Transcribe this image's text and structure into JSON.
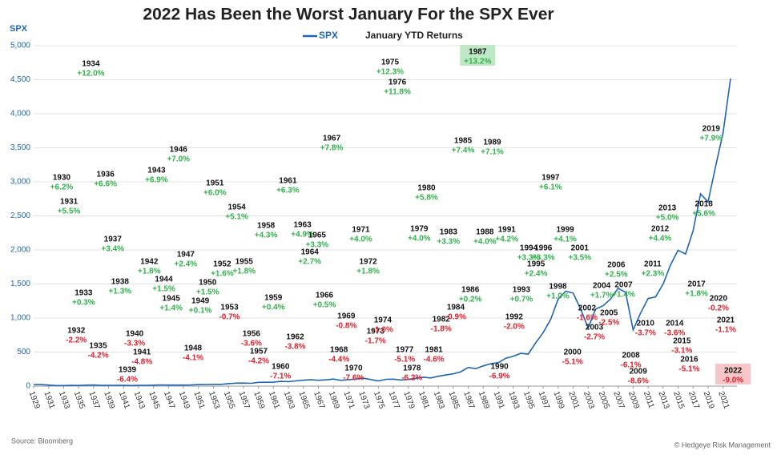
{
  "chart_data": {
    "type": "line",
    "title": "2022 Has Been the Worst January For the SPX Ever",
    "y_axis_label": "SPX",
    "annotations_title": "January YTD Returns",
    "source": "Source: Bloomberg",
    "credit": "© Hedgeye Risk Management",
    "ylim": [
      0,
      5000
    ],
    "yticks": [
      0,
      500,
      {
        "value": 1000,
        "label": "1,000"
      },
      {
        "value": 1500,
        "label": "1,500"
      },
      {
        "value": 2000,
        "label": "2,000"
      },
      {
        "value": 2500,
        "label": "2,500"
      },
      {
        "value": 3000,
        "label": "3,000"
      },
      {
        "value": 3500,
        "label": "3,500"
      },
      {
        "value": 4000,
        "label": "4,000"
      },
      {
        "value": 4500,
        "label": "4,500"
      },
      {
        "value": 5000,
        "label": "5,000"
      }
    ],
    "xlim": [
      1929,
      2022
    ],
    "xticks": [
      1929,
      1931,
      1933,
      1935,
      1937,
      1939,
      1941,
      1943,
      1945,
      1947,
      1949,
      1951,
      1953,
      1955,
      1957,
      1959,
      1961,
      1963,
      1965,
      1967,
      1969,
      1971,
      1973,
      1975,
      1977,
      1979,
      1981,
      1983,
      1985,
      1987,
      1989,
      1991,
      1993,
      1995,
      1997,
      1999,
      2001,
      2003,
      2005,
      2007,
      2009,
      2011,
      2013,
      2015,
      2017,
      2019,
      2021
    ],
    "grid": true,
    "series": [
      {
        "name": "SPX",
        "color": "#1f66b5",
        "x": [
          1929,
          1930,
          1931,
          1932,
          1933,
          1934,
          1935,
          1936,
          1937,
          1938,
          1939,
          1940,
          1941,
          1942,
          1943,
          1944,
          1945,
          1946,
          1947,
          1948,
          1949,
          1950,
          1951,
          1952,
          1953,
          1954,
          1955,
          1956,
          1957,
          1958,
          1959,
          1960,
          1961,
          1962,
          1963,
          1964,
          1965,
          1966,
          1967,
          1968,
          1969,
          1970,
          1971,
          1972,
          1973,
          1974,
          1975,
          1976,
          1977,
          1978,
          1979,
          1980,
          1981,
          1982,
          1983,
          1984,
          1985,
          1986,
          1987,
          1988,
          1989,
          1990,
          1991,
          1992,
          1993,
          1994,
          1995,
          1996,
          1997,
          1998,
          1999,
          2000,
          2001,
          2002,
          2003,
          2004,
          2005,
          2006,
          2007,
          2008,
          2009,
          2010,
          2011,
          2012,
          2013,
          2014,
          2015,
          2016,
          2017,
          2018,
          2019,
          2020,
          2021,
          2022
        ],
        "values": [
          24,
          22,
          15,
          8,
          8,
          11,
          9,
          14,
          17,
          11,
          12,
          12,
          10,
          8,
          11,
          12,
          14,
          18,
          15,
          15,
          15,
          17,
          22,
          24,
          26,
          26,
          36,
          44,
          45,
          41,
          55,
          56,
          58,
          69,
          66,
          77,
          87,
          93,
          86,
          92,
          103,
          85,
          95,
          104,
          116,
          97,
          77,
          100,
          102,
          89,
          99,
          114,
          130,
          120,
          145,
          163,
          180,
          211,
          274,
          257,
          297,
          329,
          343,
          409,
          438,
          481,
          470,
          636,
          786,
          980,
          1279,
          1394,
          1366,
          1130,
          855,
          1131,
          1181,
          1280,
          1438,
          1378,
          825,
          1073,
          1286,
          1312,
          1498,
          1782,
          1995,
          1940,
          2279,
          2823,
          2704,
          3225,
          3714,
          4515
        ]
      }
    ],
    "annotations": [
      {
        "year": "1930",
        "label": "+6.2%"
      },
      {
        "year": "1931",
        "label": "+5.5%"
      },
      {
        "year": "1932",
        "label": "-2.2%"
      },
      {
        "year": "1933",
        "label": "+0.3%"
      },
      {
        "year": "1934",
        "label": "+12.0%"
      },
      {
        "year": "1935",
        "label": "-4.2%"
      },
      {
        "year": "1936",
        "label": "+6.6%"
      },
      {
        "year": "1937",
        "label": "+3.4%"
      },
      {
        "year": "1938",
        "label": "+1.3%"
      },
      {
        "year": "1939",
        "label": "-6.4%"
      },
      {
        "year": "1940",
        "label": "-3.3%"
      },
      {
        "year": "1941",
        "label": "-4.8%"
      },
      {
        "year": "1942",
        "label": "+1.8%"
      },
      {
        "year": "1943",
        "label": "+6.9%"
      },
      {
        "year": "1944",
        "label": "+1.5%"
      },
      {
        "year": "1945",
        "label": "+1.4%"
      },
      {
        "year": "1946",
        "label": "+7.0%"
      },
      {
        "year": "1947",
        "label": "+2.4%"
      },
      {
        "year": "1948",
        "label": "-4.1%"
      },
      {
        "year": "1949",
        "label": "+0.1%"
      },
      {
        "year": "1950",
        "label": "+1.5%"
      },
      {
        "year": "1951",
        "label": "+6.0%"
      },
      {
        "year": "1952",
        "label": "+1.6%"
      },
      {
        "year": "1953",
        "label": "-0.7%"
      },
      {
        "year": "1954",
        "label": "+5.1%"
      },
      {
        "year": "1955",
        "label": "+1.8%"
      },
      {
        "year": "1956",
        "label": "-3.6%"
      },
      {
        "year": "1957",
        "label": "-4.2%"
      },
      {
        "year": "1958",
        "label": "+4.3%"
      },
      {
        "year": "1959",
        "label": "+0.4%"
      },
      {
        "year": "1960",
        "label": "-7.1%"
      },
      {
        "year": "1961",
        "label": "+6.3%"
      },
      {
        "year": "1962",
        "label": "-3.8%"
      },
      {
        "year": "1963",
        "label": "+4.9%"
      },
      {
        "year": "1964",
        "label": "+2.7%"
      },
      {
        "year": "1965",
        "label": "+3.3%"
      },
      {
        "year": "1966",
        "label": "+0.5%"
      },
      {
        "year": "1967",
        "label": "+7.8%"
      },
      {
        "year": "1968",
        "label": "-4.4%"
      },
      {
        "year": "1969",
        "label": "-0.8%"
      },
      {
        "year": "1970",
        "label": "-7.6%"
      },
      {
        "year": "1971",
        "label": "+4.0%"
      },
      {
        "year": "1972",
        "label": "+1.8%"
      },
      {
        "year": "1973",
        "label": "-1.7%"
      },
      {
        "year": "1974",
        "label": "-1.0%"
      },
      {
        "year": "1975",
        "label": "+12.3%"
      },
      {
        "year": "1976",
        "label": "+11.8%"
      },
      {
        "year": "1977",
        "label": "-5.1%"
      },
      {
        "year": "1978",
        "label": "-6.2%"
      },
      {
        "year": "1979",
        "label": "+4.0%"
      },
      {
        "year": "1980",
        "label": "+5.8%"
      },
      {
        "year": "1981",
        "label": "-4.6%"
      },
      {
        "year": "1982",
        "label": "-1.8%"
      },
      {
        "year": "1983",
        "label": "+3.3%"
      },
      {
        "year": "1984",
        "label": "-0.9%"
      },
      {
        "year": "1985",
        "label": "+7.4%"
      },
      {
        "year": "1986",
        "label": "+0.2%"
      },
      {
        "year": "1987",
        "label": "+13.2%",
        "highlight": true
      },
      {
        "year": "1988",
        "label": "+4.0%"
      },
      {
        "year": "1989",
        "label": "+7.1%"
      },
      {
        "year": "1990",
        "label": "-6.9%"
      },
      {
        "year": "1991",
        "label": "+4.2%"
      },
      {
        "year": "1992",
        "label": "-2.0%"
      },
      {
        "year": "1993",
        "label": "+0.7%"
      },
      {
        "year": "1994",
        "label": "+3.3%"
      },
      {
        "year": "1995",
        "label": "+2.4%"
      },
      {
        "year": "1996",
        "label": "+3.3%"
      },
      {
        "year": "1997",
        "label": "+6.1%"
      },
      {
        "year": "1998",
        "label": "+1.0%"
      },
      {
        "year": "1999",
        "label": "+4.1%"
      },
      {
        "year": "2000",
        "label": "-5.1%"
      },
      {
        "year": "2001",
        "label": "+3.5%"
      },
      {
        "year": "2002",
        "label": "-1.6%"
      },
      {
        "year": "2003",
        "label": "-2.7%"
      },
      {
        "year": "2004",
        "label": "+1.7%"
      },
      {
        "year": "2005",
        "label": "-2.5%"
      },
      {
        "year": "2006",
        "label": "+2.5%"
      },
      {
        "year": "2007",
        "label": "+1.4%"
      },
      {
        "year": "2008",
        "label": "-6.1%"
      },
      {
        "year": "2009",
        "label": "-8.6%"
      },
      {
        "year": "2010",
        "label": "-3.7%"
      },
      {
        "year": "2011",
        "label": "+2.3%"
      },
      {
        "year": "2012",
        "label": "+4.4%"
      },
      {
        "year": "2013",
        "label": "+5.0%"
      },
      {
        "year": "2014",
        "label": "-3.6%"
      },
      {
        "year": "2015",
        "label": "-3.1%"
      },
      {
        "year": "2016",
        "label": "-5.1%"
      },
      {
        "year": "2017",
        "label": "+1.8%"
      },
      {
        "year": "2018",
        "label": "+5.6%"
      },
      {
        "year": "2019",
        "label": "+7.9%"
      },
      {
        "year": "2020",
        "label": "-0.2%"
      },
      {
        "year": "2021",
        "label": "-1.1%"
      },
      {
        "year": "2022",
        "label": "-9.0%",
        "highlight": true
      }
    ]
  }
}
